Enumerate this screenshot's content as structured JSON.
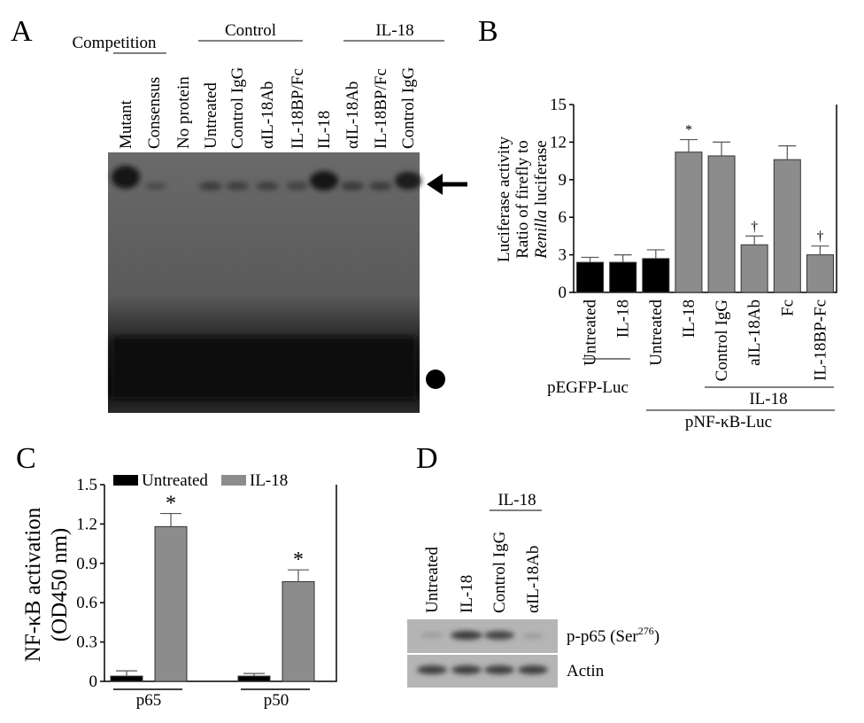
{
  "panel_a": {
    "letter": "A",
    "groups": [
      "Competition",
      "Control",
      "IL-18"
    ],
    "lanes": [
      "Mutant",
      "Consensus",
      "No protein",
      "Untreated",
      "Control IgG",
      "αIL-18Ab",
      "IL-18BP/Fc",
      "IL-18",
      "αIL-18Ab",
      "IL-18BP/Fc",
      "Control IgG"
    ]
  },
  "panel_d": {
    "letter": "D",
    "group": "IL-18",
    "lanes": [
      "Untreated",
      "IL-18",
      "Control IgG",
      "αIL-18Ab"
    ],
    "rows": [
      {
        "label": "p-p65 (Ser",
        "sup": "276",
        "close": ")"
      },
      {
        "label": "Actin"
      }
    ]
  },
  "chart_data": [
    {
      "type": "bar",
      "panel": "B",
      "ylabel": [
        "Luciferase activity",
        "Ratio of firefly to",
        "Renilla",
        "luciferase"
      ],
      "categories": [
        "Untreated",
        "IL-18",
        "Untreated",
        "IL-18",
        "Control IgG",
        "aIL-18Ab",
        "Fc",
        "IL-18BP-Fc"
      ],
      "values": [
        2.4,
        2.4,
        2.7,
        11.2,
        10.9,
        3.8,
        10.6,
        3.0
      ],
      "errors": [
        0.4,
        0.6,
        0.7,
        1.0,
        1.1,
        0.7,
        1.1,
        0.7
      ],
      "colors": [
        "#000000",
        "#000000",
        "#000000",
        "#8c8c8c",
        "#8c8c8c",
        "#8c8c8c",
        "#8c8c8c",
        "#8c8c8c"
      ],
      "markers": [
        null,
        null,
        null,
        "*",
        null,
        "†",
        null,
        "†"
      ],
      "group_labels": [
        "pEGFP-Luc",
        "IL-18",
        "pNF-κB-Luc"
      ],
      "ylim": [
        0,
        15
      ],
      "yticks": [
        0,
        3,
        6,
        9,
        12,
        15
      ],
      "grid": false
    },
    {
      "type": "grouped_bar",
      "panel": "C",
      "ylabel": [
        "NF-κB activation",
        "(OD450 nm)"
      ],
      "categories": [
        "p65",
        "p50"
      ],
      "series": [
        {
          "name": "Untreated",
          "color": "#000000",
          "values": [
            0.04,
            0.04
          ],
          "errors": [
            0.04,
            0.02
          ]
        },
        {
          "name": "IL-18",
          "color": "#8c8c8c",
          "values": [
            1.18,
            0.76
          ],
          "errors": [
            0.1,
            0.09
          ],
          "markers": [
            "*",
            "*"
          ]
        }
      ],
      "ylim": [
        0,
        1.5
      ],
      "yticks": [
        0,
        0.3,
        0.6,
        0.9,
        1.2,
        1.5
      ],
      "grid": false
    }
  ]
}
